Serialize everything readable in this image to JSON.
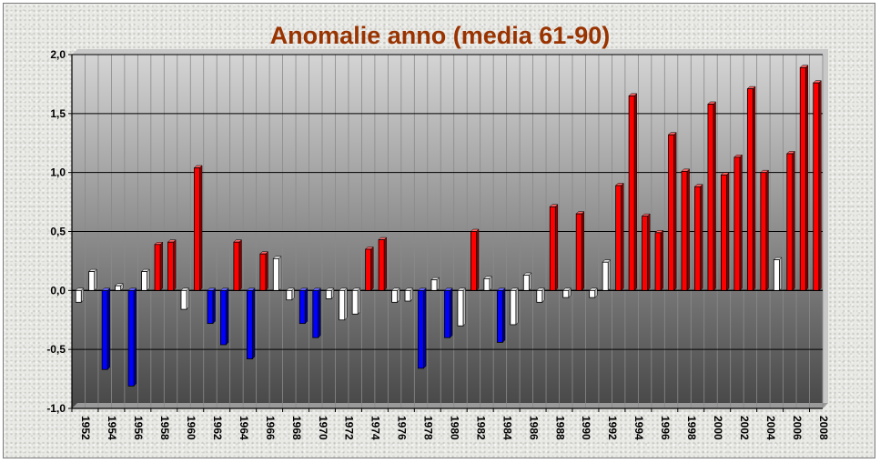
{
  "chart_data": {
    "type": "bar",
    "title": "Anomalie anno (media 61-90)",
    "xlabel": "",
    "ylabel": "",
    "ylim": [
      -1.0,
      2.0
    ],
    "ytick_values": [
      -1.0,
      -0.5,
      0.0,
      0.5,
      1.0,
      1.5,
      2.0
    ],
    "ytick_labels": [
      "-1,0",
      "-0,5",
      "0,0",
      "0,5",
      "1,0",
      "1,5",
      "2,0"
    ],
    "grid": true,
    "legend": "none",
    "categories": [
      "1952",
      "1953",
      "1954",
      "1955",
      "1956",
      "1957",
      "1958",
      "1959",
      "1960",
      "1961",
      "1962",
      "1963",
      "1964",
      "1965",
      "1966",
      "1967",
      "1968",
      "1969",
      "1970",
      "1971",
      "1972",
      "1973",
      "1974",
      "1975",
      "1976",
      "1977",
      "1978",
      "1979",
      "1980",
      "1981",
      "1982",
      "1983",
      "1984",
      "1985",
      "1986",
      "1987",
      "1988",
      "1989",
      "1990",
      "1991",
      "1992",
      "1993",
      "1994",
      "1995",
      "1996",
      "1997",
      "1998",
      "1999",
      "2000",
      "2001",
      "2002",
      "2003",
      "2004",
      "2005",
      "2006",
      "2007",
      "2008"
    ],
    "x_tick_labels": [
      "1952",
      "1954",
      "1956",
      "1958",
      "1960",
      "1962",
      "1964",
      "1966",
      "1968",
      "1970",
      "1972",
      "1974",
      "1976",
      "1978",
      "1980",
      "1982",
      "1984",
      "1986",
      "1988",
      "1990",
      "1992",
      "1994",
      "1996",
      "1998",
      "2000",
      "2002",
      "2004",
      "2006",
      "2008"
    ],
    "values": [
      -0.1,
      0.16,
      -0.67,
      0.04,
      -0.81,
      0.16,
      0.39,
      0.41,
      -0.16,
      1.04,
      -0.28,
      -0.46,
      0.41,
      -0.58,
      0.31,
      0.27,
      -0.08,
      -0.28,
      -0.4,
      -0.07,
      -0.25,
      -0.2,
      0.35,
      0.43,
      -0.1,
      -0.09,
      -0.66,
      0.09,
      -0.4,
      -0.3,
      0.5,
      0.1,
      -0.44,
      -0.29,
      0.13,
      -0.1,
      0.71,
      -0.06,
      0.65,
      -0.06,
      0.24,
      0.89,
      1.65,
      0.63,
      0.49,
      1.32,
      1.01,
      0.88,
      1.58,
      0.98,
      1.13,
      1.71,
      1.0,
      0.26,
      1.16,
      1.89,
      1.76
    ],
    "bar_colors": [
      "white",
      "white",
      "blue",
      "white",
      "blue",
      "white",
      "red",
      "red",
      "white",
      "red",
      "blue",
      "blue",
      "red",
      "blue",
      "red",
      "white",
      "white",
      "blue",
      "blue",
      "white",
      "white",
      "white",
      "red",
      "red",
      "white",
      "white",
      "blue",
      "white",
      "blue",
      "white",
      "red",
      "white",
      "blue",
      "white",
      "white",
      "white",
      "red",
      "white",
      "red",
      "white",
      "white",
      "red",
      "red",
      "red",
      "red",
      "red",
      "red",
      "red",
      "red",
      "red",
      "red",
      "red",
      "red",
      "white",
      "red",
      "red",
      "red"
    ],
    "colors": {
      "red": "#ff0000",
      "blue": "#0000ff",
      "white": "#ffffff",
      "bar_edge": "#000000",
      "plot_top": "#d4d4d4",
      "plot_bottom": "#474747",
      "title": "#993300"
    }
  }
}
